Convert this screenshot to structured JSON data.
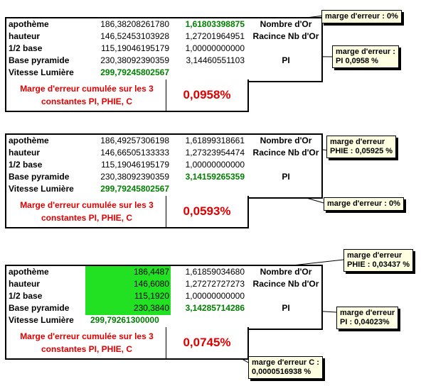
{
  "tables": [
    {
      "rows": [
        {
          "label": "apothème",
          "v1": "186,38208261780",
          "v2": "1,61803398875",
          "v3": "Nombre d'Or"
        },
        {
          "label": "hauteur",
          "v1": "146,52453103928",
          "v2": "1,27201964951",
          "v3": "Racince Nb d'Or"
        },
        {
          "label": "1/2 base",
          "v1": "115,19046195179",
          "v2": "1,00000000000",
          "v3": ""
        },
        {
          "label": "Base pyramide",
          "v1": "230,38092390359",
          "v2": "3,14460551103",
          "v3": "PI"
        },
        {
          "label": "Vitesse Lumière",
          "v1": "299,79245802567",
          "v2": "",
          "v3": ""
        }
      ],
      "summary_text": "Marge d'erreur cumulée sur les 3 constantes PI, PHIE, C",
      "summary_value": "0,0958%"
    },
    {
      "rows": [
        {
          "label": "apothème",
          "v1": "186,49257306198",
          "v2": "1,61899318661",
          "v3": "Nombre d'Or"
        },
        {
          "label": "hauteur",
          "v1": "146,66505133333",
          "v2": "1,27323954474",
          "v3": "Racince Nb d'Or"
        },
        {
          "label": "1/2 base",
          "v1": "115,19046195179",
          "v2": "1,00000000000",
          "v3": ""
        },
        {
          "label": "Base pyramide",
          "v1": "230,38092390359",
          "v2": "3,14159265359",
          "v3": "PI"
        },
        {
          "label": "Vitesse Lumière",
          "v1": "299,79245802567",
          "v2": "",
          "v3": ""
        }
      ],
      "summary_text": "Marge d'erreur cumulée sur les 3 constantes PI, PHIE, C",
      "summary_value": "0,0593%"
    },
    {
      "rows": [
        {
          "label": "apothème",
          "v1": "186,4487",
          "v2": "1,61859034680",
          "v3": "Nombre d'Or"
        },
        {
          "label": "hauteur",
          "v1": "146,6080",
          "v2": "1,27272727273",
          "v3": "Racince Nb d'Or"
        },
        {
          "label": "1/2 base",
          "v1": "115,1920",
          "v2": "1,00000000000",
          "v3": ""
        },
        {
          "label": "Base pyramide",
          "v1": "230,3840",
          "v2": "3,14285714286",
          "v3": "PI"
        },
        {
          "label": "Vitesse Lumière",
          "v1": "299,79261300000",
          "v2": "",
          "v3": ""
        }
      ],
      "summary_text": "Marge d'erreur cumulée sur les 3 constantes PI, PHIE, C",
      "summary_value": "0,0745%"
    }
  ],
  "notes": {
    "n1": "marge d'erreur : 0%",
    "n2_line1": "marge d'erreur :",
    "n2_line2": "PI 0,0958 %",
    "n3_line1": "marge d'erreur",
    "n3_line2": "PHIE : 0,05925 %",
    "n4": "marge d'erreur : 0%",
    "n5_line1": "marge d'erreur",
    "n5_line2": "PHIE : 0,03437 %",
    "n6_line1": "marge d'erreur",
    "n6_line2": "PI : 0,04023%",
    "n7_line1": "marge d'erreur C :",
    "n7_line2": "0,0000516938 %"
  },
  "colors": {
    "green_text": "#008000",
    "red_text": "#e00000",
    "green_fill": "#22e022",
    "note_bg": "#ffffe1"
  }
}
